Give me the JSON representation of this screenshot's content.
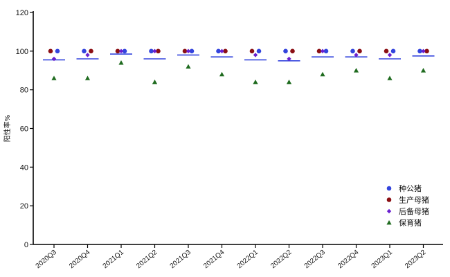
{
  "chart_data": {
    "type": "scatter",
    "ylabel": "阳性率%",
    "xlabel": "",
    "ylim": [
      0,
      120
    ],
    "yticks": [
      0,
      20,
      40,
      60,
      80,
      100,
      120
    ],
    "categories": [
      "2020Q3",
      "2020Q4",
      "2021Q1",
      "2021Q2",
      "2021Q3",
      "2021Q4",
      "2022Q1",
      "2022Q2",
      "2022Q3",
      "2022Q4",
      "2023Q1",
      "2023Q2"
    ],
    "series": [
      {
        "name": "种公猪",
        "marker": "circle",
        "color": "#3344dd",
        "values": [
          100,
          100,
          100,
          100,
          100,
          100,
          100,
          100,
          100,
          100,
          100,
          100
        ]
      },
      {
        "name": "生产母猪",
        "marker": "circle",
        "color": "#8b0f14",
        "values": [
          100,
          100,
          100,
          100,
          100,
          100,
          100,
          100,
          100,
          100,
          100,
          100
        ]
      },
      {
        "name": "后备母猪",
        "marker": "diamond",
        "color": "#6a1fd0",
        "values": [
          96,
          98,
          100,
          100,
          100,
          100,
          98,
          96,
          100,
          98,
          98,
          100
        ]
      },
      {
        "name": "保育猪",
        "marker": "triangle",
        "color": "#1f6b1f",
        "values": [
          86,
          86,
          94,
          84,
          92,
          88,
          84,
          84,
          88,
          90,
          86,
          90
        ]
      }
    ],
    "mean_lines": {
      "color": "#3344dd",
      "values": [
        95.5,
        96,
        98.5,
        96,
        98,
        97,
        95.5,
        95,
        97,
        97,
        96,
        97.5
      ]
    },
    "legend_position": "right"
  }
}
